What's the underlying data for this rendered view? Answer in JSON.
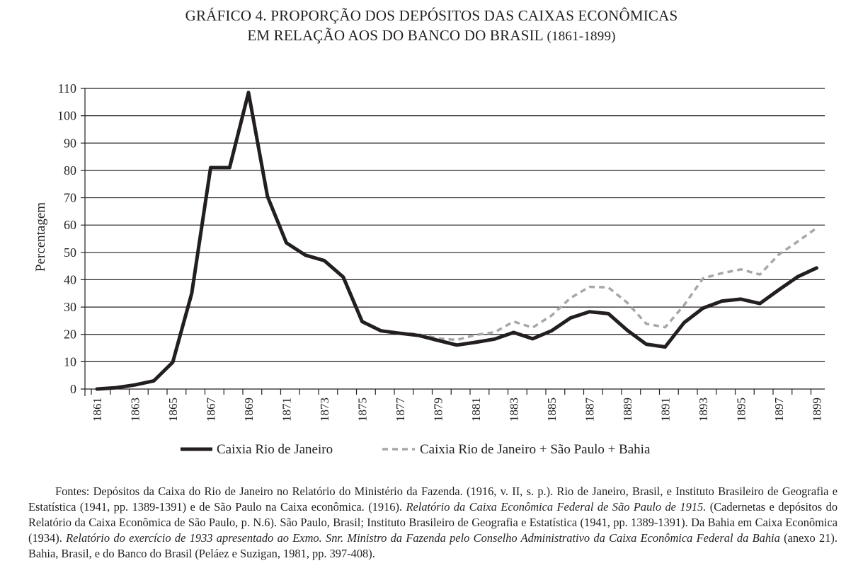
{
  "title": {
    "line1": "GRÁFICO 4. PROPORÇÃO DOS DEPÓSITOS DAS CAIXAS ECONÔMICAS",
    "line2": "EM RELAÇÃO AOS DO BANCO DO BRASIL",
    "years": "(1861-1899)"
  },
  "chart_data": {
    "type": "line",
    "ylabel": "Percentagem",
    "xlabel": "",
    "ylim": [
      0,
      110
    ],
    "yticks": [
      0,
      10,
      20,
      30,
      40,
      50,
      60,
      70,
      80,
      90,
      100,
      110
    ],
    "xlabels_shown": [
      "1861",
      "1863",
      "1865",
      "1867",
      "1869",
      "1871",
      "1873",
      "1875",
      "1877",
      "1879",
      "1881",
      "1883",
      "1885",
      "1887",
      "1889",
      "1891",
      "1893",
      "1895",
      "1897",
      "1899"
    ],
    "grid": true,
    "legend_placement": "bottom",
    "colors": {
      "rio": "#231f20",
      "combined": "#a7a7a7"
    },
    "series": [
      {
        "name": "Caixia Rio de Janeiro",
        "style": "solid",
        "x": [
          1861,
          1862,
          1863,
          1864,
          1865,
          1866,
          1867,
          1868,
          1869,
          1870,
          1871,
          1872,
          1873,
          1874,
          1875,
          1876,
          1877,
          1878,
          1879,
          1880,
          1881,
          1882,
          1883,
          1884,
          1885,
          1886,
          1887,
          1888,
          1889,
          1890,
          1891,
          1892,
          1893,
          1894,
          1895,
          1896,
          1897,
          1898,
          1899
        ],
        "values": [
          0,
          0.5,
          1.5,
          3,
          9.8,
          35,
          81,
          81,
          108.5,
          70.5,
          53.5,
          49,
          47,
          41,
          24.7,
          21.3,
          20.4,
          19.6,
          17.8,
          16.1,
          17.1,
          18.3,
          20.7,
          18.4,
          21.3,
          26,
          28.3,
          27.6,
          21.5,
          16.4,
          15.4,
          24.3,
          29.6,
          32.2,
          32.9,
          31.3,
          36.3,
          41.1,
          44.3
        ]
      },
      {
        "name": "Caixia Rio de Janeiro + São Paulo + Bahia",
        "style": "dashed",
        "x": [
          1875,
          1876,
          1877,
          1878,
          1879,
          1880,
          1881,
          1882,
          1883,
          1884,
          1885,
          1886,
          1887,
          1888,
          1889,
          1890,
          1891,
          1892,
          1893,
          1894,
          1895,
          1896,
          1897,
          1898,
          1899
        ],
        "values": [
          24.7,
          21.3,
          20.6,
          20,
          18.5,
          18,
          19.8,
          20.8,
          24.7,
          22.5,
          26.9,
          33.3,
          37.4,
          37.2,
          31.6,
          23.9,
          22.6,
          30.7,
          40.5,
          42.4,
          43.8,
          41.9,
          49.2,
          54,
          58.9
        ]
      }
    ]
  },
  "footnote": {
    "parts": [
      "Fontes: Depósitos da Caixa do Rio de Janeiro no Relatório do Ministério da Fazenda. (1916, v. II, s. p.). Rio de Janeiro, Brasil, e Instituto Brasileiro de Geografia e Estatística (1941, pp. 1389-1391) e de São Paulo na Caixa econômica. (1916). ",
      "Relatório da Caixa Econômica Federal de São Paulo de 1915.",
      " (Cadernetas e depósitos do Relatório da Caixa Econômica de São Paulo, p. N.6). São Paulo, Brasil; Instituto Brasileiro de Geografia e Estatística (1941, pp. 1389-1391). Da Bahia em Caixa Econômica (1934). ",
      "Relatório do exercício de 1933 apresentado ao Exmo. Snr. Ministro da Fazenda pelo Conselho Administrativo da Caixa Econômica Federal da Bahia",
      " (anexo 21). Bahia, Brasil, e do Banco do Brasil (Peláez e Suzigan, 1981, pp. 397-408)."
    ]
  }
}
